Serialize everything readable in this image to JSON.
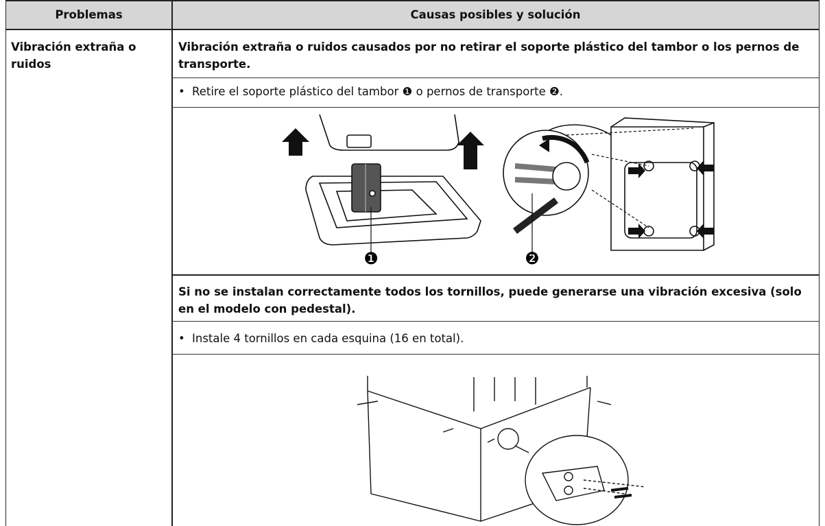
{
  "header": {
    "col1": "Problemas",
    "col2": "Causas posibles y solución"
  },
  "problem": "Vibración extraña o ruidos",
  "bullet": "•",
  "sections": [
    {
      "heading": "Vibración extraña o ruidos causados por no retirar el soporte plástico del tambor o los pernos de transporte.",
      "text": "Retire el soporte plástico del tambor ❶ o pernos de transporte ❷.",
      "callouts": [
        "❶",
        "❷"
      ]
    },
    {
      "heading": "Si no se instalan correctamente todos los tornillos, puede generarse una vibración excesiva (solo en el modelo con pedestal).",
      "text": "Instale 4 tornillos en cada esquina (16 en total)."
    }
  ]
}
